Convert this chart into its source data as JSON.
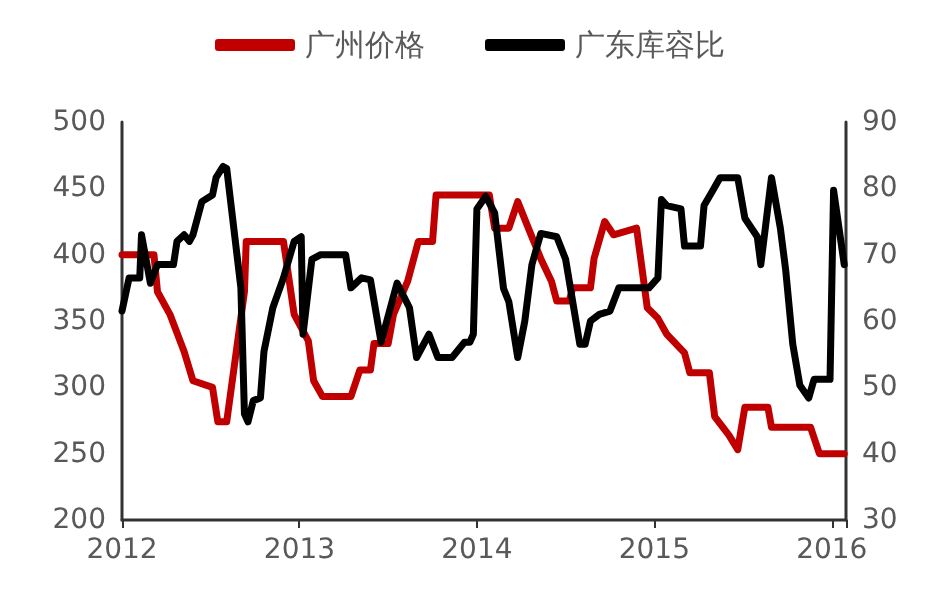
{
  "chart_data": {
    "type": "line",
    "x": [
      2012.0,
      2012.18,
      2012.2,
      2012.27,
      2012.35,
      2012.4,
      2012.51,
      2012.54,
      2012.59,
      2012.69,
      2012.7,
      2012.91,
      2012.97,
      2013.05,
      2013.08,
      2013.13,
      2013.29,
      2013.34,
      2013.4,
      2013.42,
      2013.5,
      2013.53,
      2013.61,
      2013.67,
      2013.75,
      2013.77,
      2014.07,
      2014.1,
      2014.18,
      2014.23,
      2014.29,
      2014.36,
      2014.42,
      2014.45,
      2014.52,
      2014.54,
      2014.64,
      2014.66,
      2014.72,
      2014.77,
      2014.9,
      2014.96,
      2015.02,
      2015.07,
      2015.17,
      2015.2,
      2015.31,
      2015.34,
      2015.42,
      2015.47,
      2015.51,
      2015.64,
      2015.66,
      2015.88,
      2015.93,
      2016.07
    ],
    "series": [
      {
        "name": "广州价格",
        "color": "#c00000",
        "values": [
          400,
          400,
          372,
          355,
          327,
          305,
          300,
          274,
          274,
          372,
          410,
          410,
          355,
          335,
          305,
          293,
          293,
          313,
          313,
          333,
          333,
          355,
          380,
          410,
          410,
          445,
          445,
          420,
          420,
          440,
          420,
          397,
          380,
          365,
          365,
          375,
          375,
          397,
          425,
          415,
          420,
          360,
          352,
          340,
          326,
          311,
          311,
          278,
          264,
          253,
          285,
          285,
          270,
          270,
          250,
          250
        ]
      },
      {
        "name": "广东库容比",
        "color": "#000000",
        "axis": "y2",
        "x": [
          2012.0,
          2012.04,
          2012.1,
          2012.11,
          2012.16,
          2012.2,
          2012.29,
          2012.31,
          2012.35,
          2012.38,
          2012.4,
          2012.45,
          2012.51,
          2012.53,
          2012.57,
          2012.59,
          2012.67,
          2012.69,
          2012.71,
          2012.74,
          2012.78,
          2012.8,
          2012.85,
          2012.91,
          2012.97,
          2013.01,
          2013.02,
          2013.07,
          2013.12,
          2013.26,
          2013.29,
          2013.35,
          2013.4,
          2013.46,
          2013.55,
          2013.62,
          2013.66,
          2013.73,
          2013.78,
          2013.86,
          2013.93,
          2013.96,
          2013.98,
          2014.0,
          2014.05,
          2014.1,
          2014.15,
          2014.18,
          2014.23,
          2014.27,
          2014.31,
          2014.36,
          2014.45,
          2014.5,
          2014.58,
          2014.61,
          2014.64,
          2014.69,
          2014.75,
          2014.8,
          2014.97,
          2015.02,
          2015.04,
          2015.07,
          2015.15,
          2015.17,
          2015.26,
          2015.28,
          2015.33,
          2015.37,
          2015.47,
          2015.51,
          2015.58,
          2015.6,
          2015.66,
          2015.71,
          2015.74,
          2015.78,
          2015.82,
          2015.87,
          2015.9,
          2015.99,
          2016.01,
          2016.07
        ],
        "values": [
          61.5,
          66.5,
          66.5,
          73,
          65.7,
          68.5,
          68.5,
          72,
          73,
          72,
          73,
          78,
          79,
          81.6,
          83.3,
          83,
          65,
          46,
          44.8,
          48,
          48.4,
          55.4,
          62,
          66.5,
          72,
          72.7,
          58,
          69.3,
          70,
          70,
          65,
          66.5,
          66.2,
          56.8,
          65.7,
          62,
          54.5,
          58,
          54.5,
          54.5,
          56.8,
          56.8,
          58,
          76.9,
          78.8,
          76.3,
          64.9,
          62.9,
          54.5,
          60,
          68.5,
          73.2,
          72.7,
          69.3,
          56.5,
          56.5,
          60,
          61,
          61.5,
          65,
          65,
          66.5,
          78.3,
          77.4,
          76.9,
          71.3,
          71.3,
          77.4,
          79.7,
          81.6,
          81.6,
          75.5,
          72.7,
          68.5,
          81.6,
          74,
          67.7,
          56.5,
          50.3,
          48.4,
          51.2,
          51.2,
          79.7,
          68.5
        ]
      }
    ],
    "xlim": [
      2012,
      2016.08
    ],
    "xticks": [
      2012,
      2013,
      2014,
      2015,
      2016
    ],
    "ylim": [
      200,
      500
    ],
    "yticks": [
      200,
      250,
      300,
      350,
      400,
      450,
      500
    ],
    "y2lim": [
      30,
      90
    ],
    "y2ticks": [
      30,
      40,
      50,
      60,
      70,
      80,
      90
    ],
    "legend": "top",
    "grid": false,
    "marker": "none",
    "line_style": "solid"
  }
}
